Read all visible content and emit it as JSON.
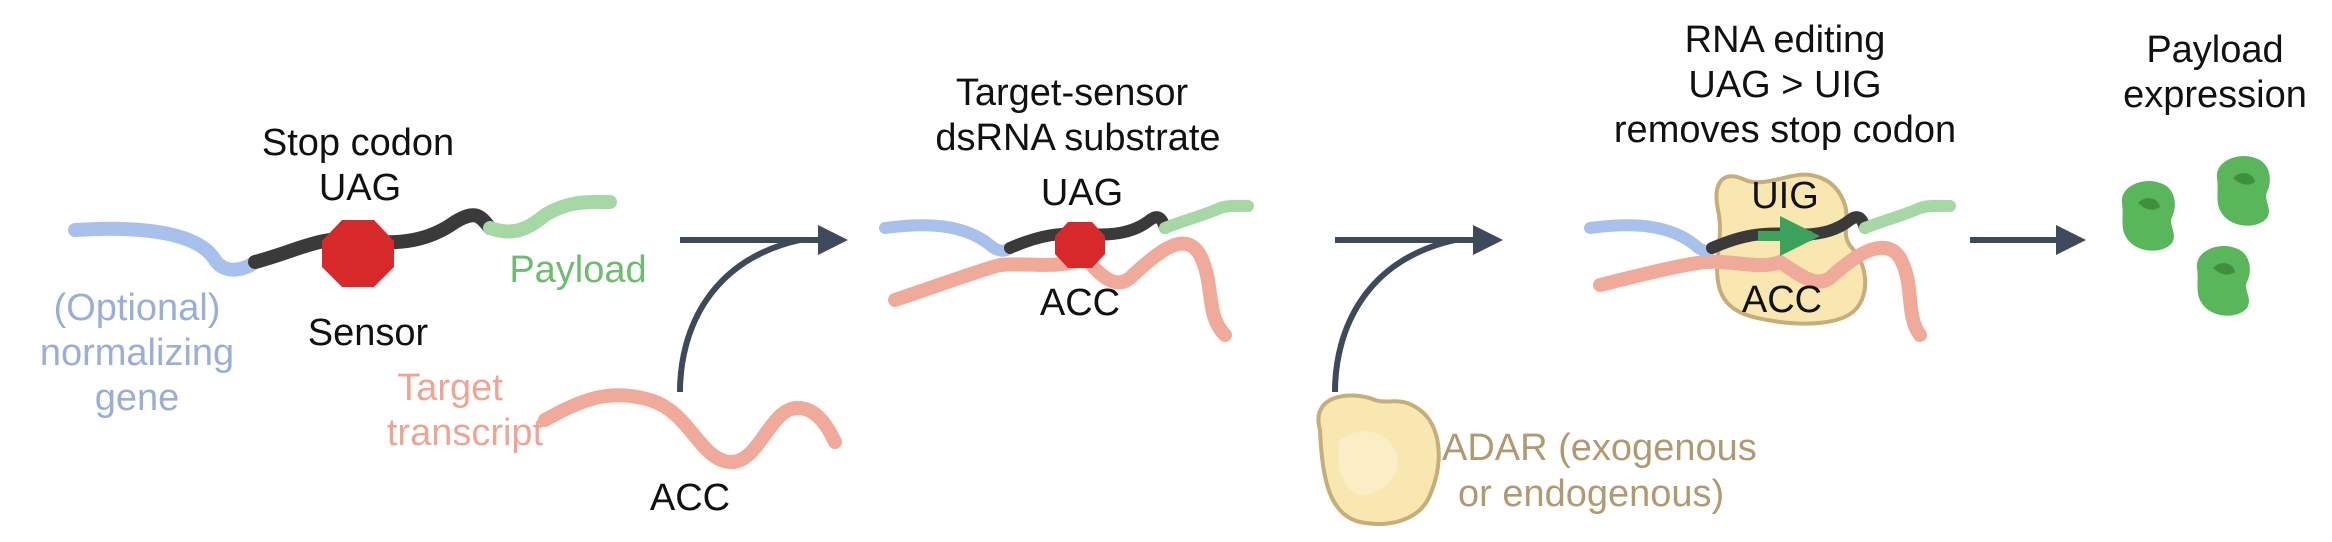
{
  "panel1": {
    "stop_codon_title": "Stop codon",
    "codon": "UAG",
    "sensor": "Sensor",
    "payload": "Payload",
    "normalizing_gene": [
      "(Optional)",
      "normalizing",
      "gene"
    ],
    "target_transcript": [
      "Target",
      "transcript"
    ],
    "target_codon": "ACC"
  },
  "panel2": {
    "title": [
      "Target-sensor",
      "dsRNA substrate"
    ],
    "codon_top": "UAG",
    "codon_bottom": "ACC"
  },
  "adar": {
    "label": [
      "ADAR (exogenous",
      "or endogenous)"
    ]
  },
  "panel3": {
    "title": [
      "RNA editing",
      "UAG > UIG",
      "removes stop codon"
    ],
    "codon_top": "UIG",
    "codon_bottom": "ACC"
  },
  "panel4": {
    "title": [
      "Payload",
      "expression"
    ]
  },
  "colors": {
    "normalizing_gene": "#a8c0ec",
    "sensor": "#3a3a3a",
    "payload": "#a6d8a6",
    "target": "#efaa9a",
    "stop_sign": "#d8292a",
    "arrow": "#3d4a5c",
    "adar_fill": "#f8e7b0",
    "adar_stroke": "#c7ad78",
    "protein": "#5ab65a"
  }
}
